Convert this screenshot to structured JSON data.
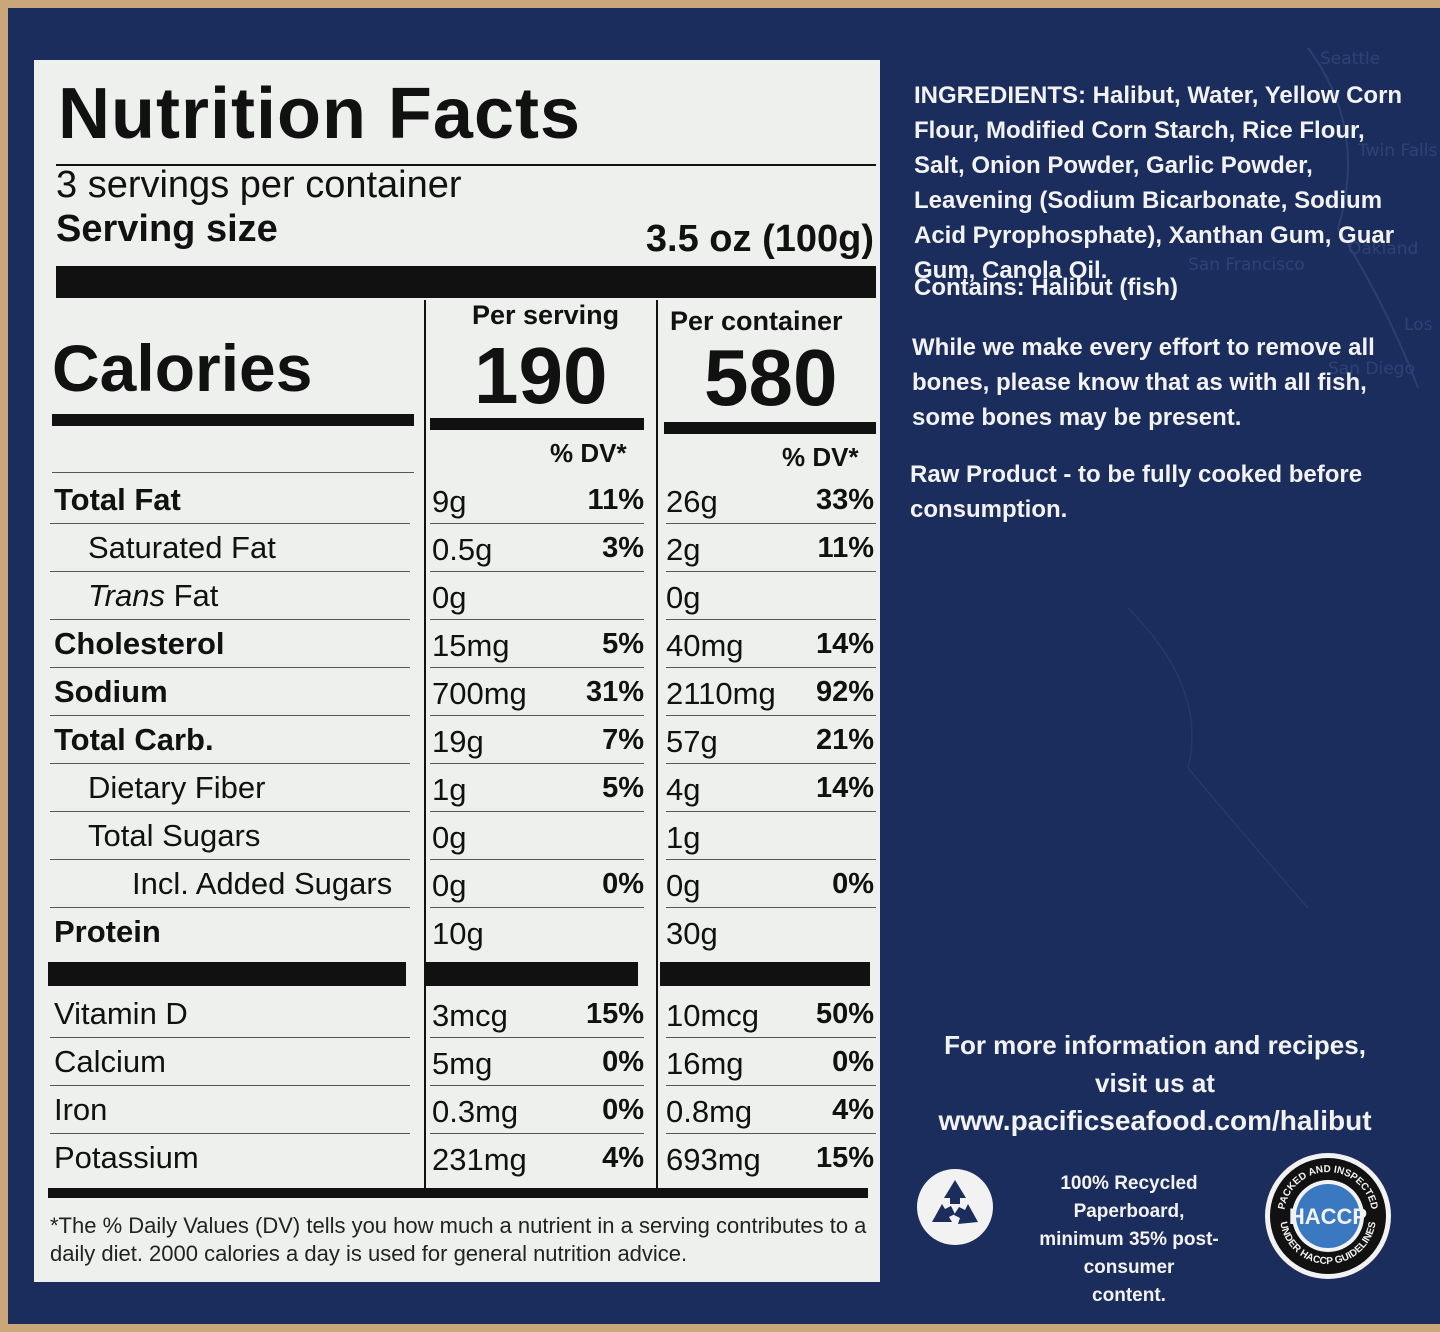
{
  "nutrition": {
    "title": "Nutrition Facts",
    "servings_per_container": "3 servings per container",
    "serving_size_label": "Serving size",
    "serving_size_value": "3.5 oz (100g)",
    "calories_label": "Calories",
    "per_serving_label": "Per serving",
    "per_container_label": "Per container",
    "calories_per_serving": "190",
    "calories_per_container": "580",
    "dv_header": "% DV*",
    "rows": [
      {
        "name": "Total Fat",
        "amt1": "9g",
        "pct1": "11%",
        "amt2": "26g",
        "pct2": "33%"
      },
      {
        "name": "Saturated Fat",
        "amt1": "0.5g",
        "pct1": "3%",
        "amt2": "2g",
        "pct2": "11%"
      },
      {
        "name_prefix": "Trans",
        "name": " Fat",
        "amt1": "0g",
        "pct1": "",
        "amt2": "0g",
        "pct2": ""
      },
      {
        "name": "Cholesterol",
        "amt1": "15mg",
        "pct1": "5%",
        "amt2": "40mg",
        "pct2": "14%"
      },
      {
        "name": "Sodium",
        "amt1": "700mg",
        "pct1": "31%",
        "amt2": "2110mg",
        "pct2": "92%"
      },
      {
        "name": "Total Carb.",
        "amt1": "19g",
        "pct1": "7%",
        "amt2": "57g",
        "pct2": "21%"
      },
      {
        "name": "Dietary Fiber",
        "amt1": "1g",
        "pct1": "5%",
        "amt2": "4g",
        "pct2": "14%"
      },
      {
        "name": "Total Sugars",
        "amt1": "0g",
        "pct1": "",
        "amt2": "1g",
        "pct2": ""
      },
      {
        "name": "Incl. Added Sugars",
        "amt1": "0g",
        "pct1": "0%",
        "amt2": "0g",
        "pct2": "0%"
      },
      {
        "name": "Protein",
        "amt1": "10g",
        "pct1": "",
        "amt2": "30g",
        "pct2": ""
      },
      {
        "name": "Vitamin D",
        "amt1": "3mcg",
        "pct1": "15%",
        "amt2": "10mcg",
        "pct2": "50%"
      },
      {
        "name": "Calcium",
        "amt1": "5mg",
        "pct1": "0%",
        "amt2": "16mg",
        "pct2": "0%"
      },
      {
        "name": "Iron",
        "amt1": "0.3mg",
        "pct1": "0%",
        "amt2": "0.8mg",
        "pct2": "4%"
      },
      {
        "name": "Potassium",
        "amt1": "231mg",
        "pct1": "4%",
        "amt2": "693mg",
        "pct2": "15%"
      }
    ],
    "footnote": "*The % Daily Values (DV) tells you how much a nutrient in a serving contributes to a daily diet. 2000 calories a day is used for general nutrition advice."
  },
  "package": {
    "ingredients": "INGREDIENTS: Halibut, Water, Yellow Corn Flour, Modified Corn Starch, Rice Flour, Salt, Onion Powder, Garlic Powder, Leavening (Sodium Bicarbonate, Sodium Acid Pyrophosphate), Xanthan Gum, Guar Gum, Canola Oil.",
    "contains": "Contains: Halibut (fish)",
    "bones_notice": "While we make every effort to remove all bones, please know that as with all fish, some bones may be present.",
    "raw_notice": "Raw Product - to be fully cooked before consumption.",
    "more_info_line1": "For more information and recipes, visit us at",
    "more_info_url": "www.pacificseafood.com/halibut",
    "recycled_line1": "100% Recycled Paperboard,",
    "recycled_line2": "minimum 35% post-consumer",
    "recycled_line3": "content.",
    "haccp_center": "HACCP",
    "haccp_top": "PACKED AND INSPECTED",
    "haccp_bottom": "UNDER HACCP GUIDELINES",
    "map_labels": [
      "Seattle",
      "Twin Falls",
      "San Francisco",
      "Oakland",
      "San Diego",
      "Los"
    ]
  },
  "colors": {
    "box_blue": "#1b2d5c",
    "label_bg": "#eef0ee",
    "ink": "#111111",
    "wood": "#c9a77a"
  }
}
